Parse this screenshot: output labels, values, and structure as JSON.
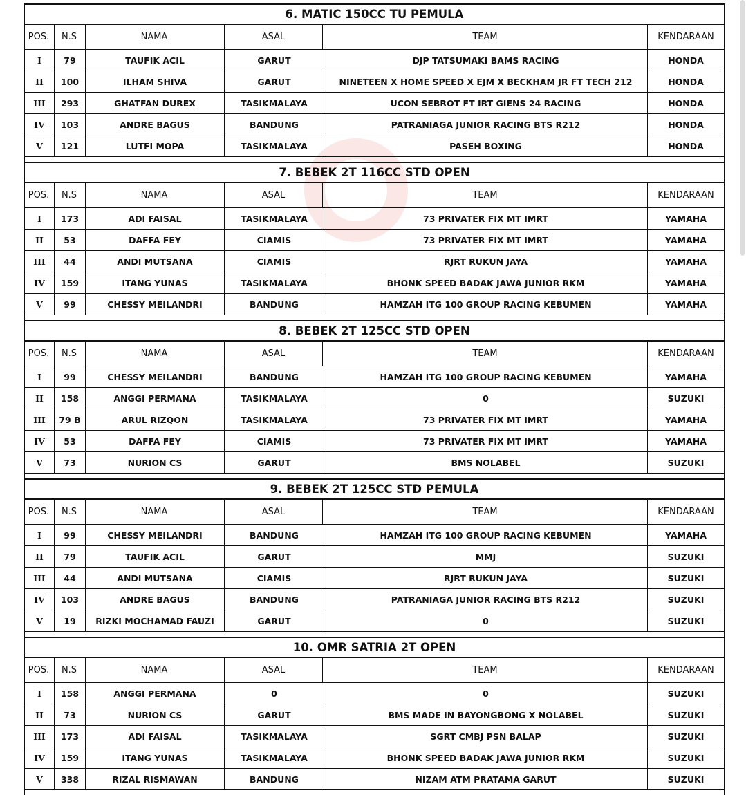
{
  "columns": [
    "POS.",
    "N.S",
    "NAMA",
    "ASAL",
    "TEAM",
    "KENDARAAN"
  ],
  "sections": [
    {
      "title": "6. MATIC 150CC TU PEMULA",
      "rows": [
        [
          "I",
          "79",
          "TAUFIK ACIL",
          "GARUT",
          "DJP TATSUMAKI BAMS RACING",
          "HONDA"
        ],
        [
          "II",
          "100",
          "ILHAM SHIVA",
          "GARUT",
          "NINETEEN X HOME SPEED X EJM X BECKHAM JR FT TECH 212",
          "HONDA"
        ],
        [
          "III",
          "293",
          "GHATFAN DUREX",
          "TASIKMALAYA",
          "UCON SEBROT FT IRT GIENS 24 RACING",
          "HONDA"
        ],
        [
          "IV",
          "103",
          "ANDRE BAGUS",
          "BANDUNG",
          "PATRANIAGA JUNIOR RACING BTS R212",
          "HONDA"
        ],
        [
          "V",
          "121",
          "LUTFI MOPA",
          "TASIKMALAYA",
          "PASEH BOXING",
          "HONDA"
        ]
      ]
    },
    {
      "title": "7. BEBEK 2T 116CC STD OPEN",
      "rows": [
        [
          "I",
          "173",
          "ADI FAISAL",
          "TASIKMALAYA",
          "73 PRIVATER FIX MT IMRT",
          "YAMAHA"
        ],
        [
          "II",
          "53",
          "DAFFA FEY",
          "CIAMIS",
          "73 PRIVATER FIX MT IMRT",
          "YAMAHA"
        ],
        [
          "III",
          "44",
          "ANDI MUTSANA",
          "CIAMIS",
          "RJRT RUKUN JAYA",
          "YAMAHA"
        ],
        [
          "IV",
          "159",
          "ITANG YUNAS",
          "TASIKMALAYA",
          "BHONK SPEED BADAK JAWA JUNIOR RKM",
          "YAMAHA"
        ],
        [
          "V",
          "99",
          "CHESSY MEILANDRI",
          "BANDUNG",
          "HAMZAH ITG 100 GROUP RACING KEBUMEN",
          "YAMAHA"
        ]
      ]
    },
    {
      "title": "8. BEBEK 2T 125CC STD OPEN",
      "rows": [
        [
          "I",
          "99",
          "CHESSY MEILANDRI",
          "BANDUNG",
          "HAMZAH ITG 100 GROUP RACING KEBUMEN",
          "YAMAHA"
        ],
        [
          "II",
          "158",
          "ANGGI PERMANA",
          "TASIKMALAYA",
          "0",
          "SUZUKI"
        ],
        [
          "III",
          "79 B",
          "ARUL RIZQON",
          "TASIKMALAYA",
          "73 PRIVATER FIX MT IMRT",
          "YAMAHA"
        ],
        [
          "IV",
          "53",
          "DAFFA FEY",
          "CIAMIS",
          "73 PRIVATER FIX MT IMRT",
          "YAMAHA"
        ],
        [
          "V",
          "73",
          "NURION CS",
          "GARUT",
          "BMS NOLABEL",
          "SUZUKI"
        ]
      ]
    },
    {
      "title": "9. BEBEK 2T 125CC STD PEMULA",
      "rows": [
        [
          "I",
          "99",
          "CHESSY MEILANDRI",
          "BANDUNG",
          "HAMZAH ITG 100 GROUP RACING KEBUMEN",
          "YAMAHA"
        ],
        [
          "II",
          "79",
          "TAUFIK ACIL",
          "GARUT",
          "MMJ",
          "SUZUKI"
        ],
        [
          "III",
          "44",
          "ANDI MUTSANA",
          "CIAMIS",
          "RJRT RUKUN JAYA",
          "SUZUKI"
        ],
        [
          "IV",
          "103",
          "ANDRE BAGUS",
          "BANDUNG",
          "PATRANIAGA JUNIOR RACING BTS R212",
          "SUZUKI"
        ],
        [
          "V",
          "19",
          "RIZKI MOCHAMAD FAUZI",
          "GARUT",
          "0",
          "SUZUKI"
        ]
      ]
    },
    {
      "title": "10. OMR SATRIA 2T OPEN",
      "rows": [
        [
          "I",
          "158",
          "ANGGI PERMANA",
          "0",
          "0",
          "SUZUKI"
        ],
        [
          "II",
          "73",
          "NURION CS",
          "GARUT",
          "BMS MADE IN BAYONGBONG X NOLABEL",
          "SUZUKI"
        ],
        [
          "III",
          "173",
          "ADI FAISAL",
          "TASIKMALAYA",
          "SGRT CMBJ PSN BALAP",
          "SUZUKI"
        ],
        [
          "IV",
          "159",
          "ITANG YUNAS",
          "TASIKMALAYA",
          "BHONK SPEED BADAK JAWA JUNIOR RKM",
          "SUZUKI"
        ],
        [
          "V",
          "338",
          "RIZAL RISMAWAN",
          "BANDUNG",
          "NIZAM ATM PRATAMA GARUT",
          "SUZUKI"
        ]
      ]
    }
  ]
}
